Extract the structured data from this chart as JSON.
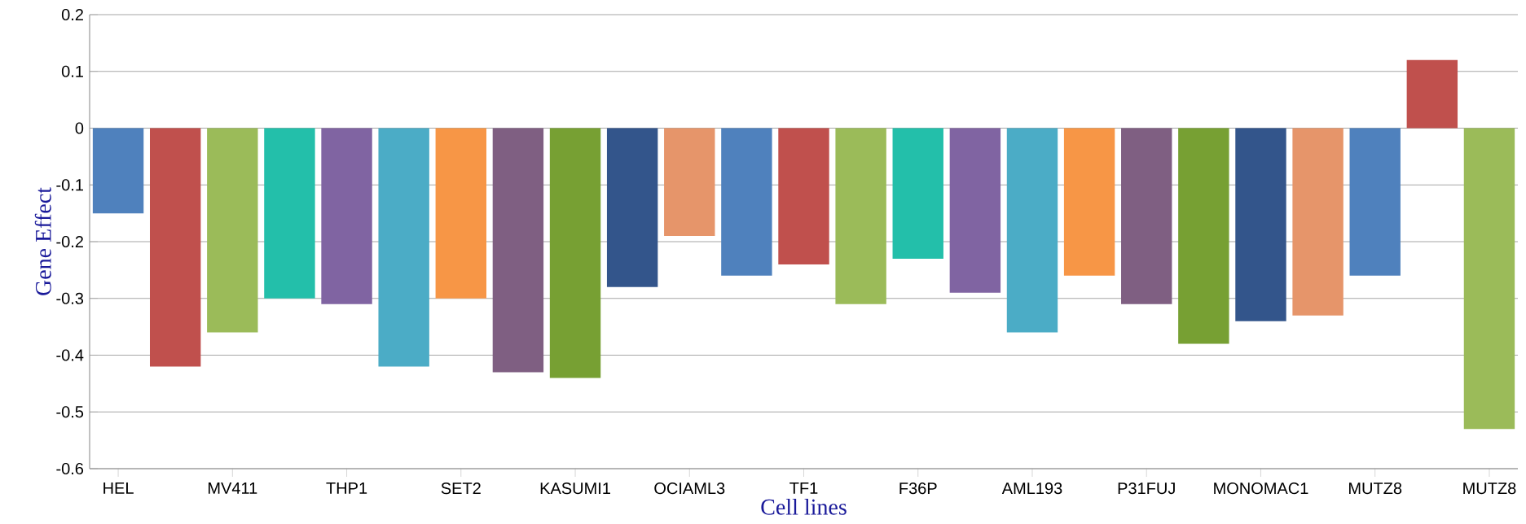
{
  "chart_data": {
    "type": "bar",
    "xlabel": "Cell lines",
    "ylabel": "Gene Effect",
    "categories": [
      "HEL",
      null,
      "MV411",
      null,
      "THP1",
      null,
      "SET2",
      null,
      "KASUMI1",
      null,
      "OCIAML3",
      null,
      "TF1",
      null,
      "F36P",
      null,
      "AML193",
      null,
      "P31FUJ",
      null,
      "MONOMAC1",
      null,
      "MUTZ8",
      null,
      "MUTZ8"
    ],
    "values": [
      -0.15,
      -0.42,
      -0.36,
      -0.3,
      -0.31,
      -0.42,
      -0.3,
      -0.43,
      -0.44,
      -0.28,
      -0.19,
      -0.26,
      -0.24,
      -0.31,
      -0.23,
      -0.29,
      -0.36,
      -0.26,
      -0.31,
      -0.38,
      -0.34,
      -0.33,
      -0.26,
      0.12,
      -0.53
    ],
    "colors": [
      "#4f81bd",
      "#c0504d",
      "#9bbb59",
      "#23bfaa",
      "#8064a2",
      "#4bacc6",
      "#f79646",
      "#7f5f82",
      "#77a033",
      "#33558b",
      "#e6956a",
      "#4f81bd",
      "#c0504d",
      "#9bbb59",
      "#23bfaa",
      "#8064a2",
      "#4bacc6",
      "#f79646",
      "#7f5f82",
      "#77a033",
      "#33558b",
      "#e6956a",
      "#4f81bd",
      "#c0504d",
      "#9bbb59"
    ],
    "ylim": [
      -0.6,
      0.2
    ],
    "yticks": [
      -0.6,
      -0.5,
      -0.4,
      -0.3,
      -0.2,
      -0.1,
      0,
      0.1,
      0.2
    ],
    "grid": "y"
  }
}
